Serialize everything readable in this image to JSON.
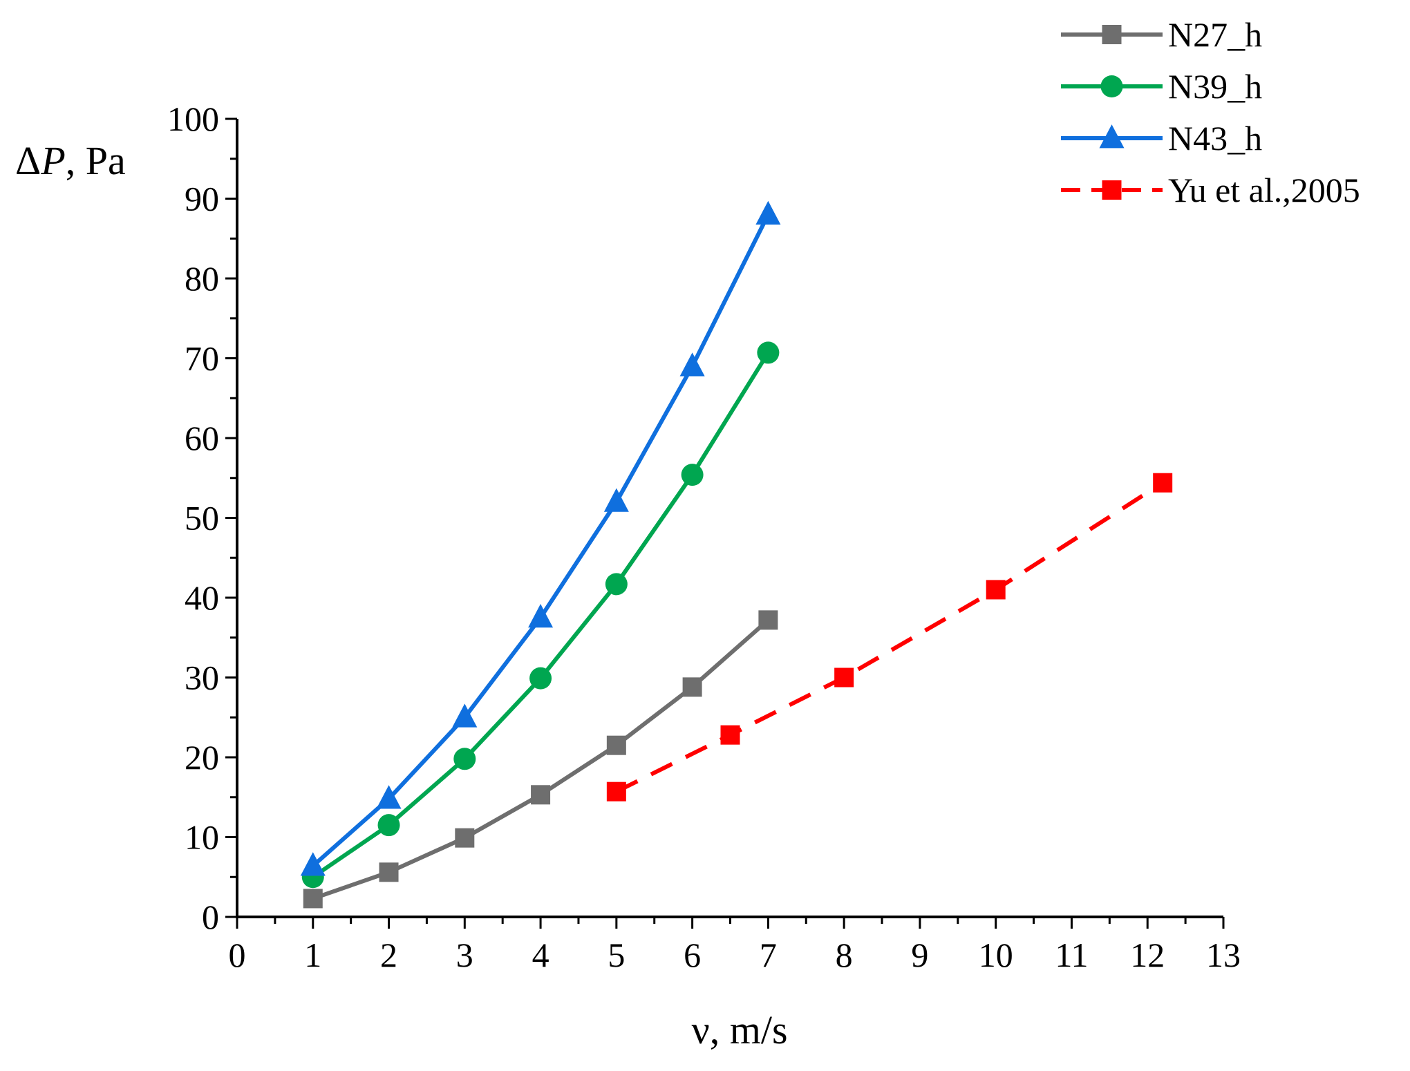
{
  "chart_data": {
    "type": "line",
    "title": "",
    "xlabel": "ν, m/s",
    "ylabel_symbol": "Δ",
    "ylabel_var": "P",
    "ylabel_unit": ", Pa",
    "xlim": [
      0,
      13
    ],
    "ylim": [
      0,
      100
    ],
    "x_ticks": [
      0,
      1,
      2,
      3,
      4,
      5,
      6,
      7,
      8,
      9,
      10,
      11,
      12,
      13
    ],
    "y_ticks": [
      0,
      10,
      20,
      30,
      40,
      50,
      60,
      70,
      80,
      90,
      100
    ],
    "grid": false,
    "legend_position": "top-right",
    "series": [
      {
        "name": "N27_h",
        "color": "#6e6e6e",
        "marker": "square",
        "dashed": false,
        "x": [
          1,
          2,
          3,
          4,
          5,
          6,
          7
        ],
        "y": [
          2.3,
          5.6,
          9.9,
          15.3,
          21.5,
          28.8,
          37.2
        ]
      },
      {
        "name": "N39_h",
        "color": "#00a650",
        "marker": "circle",
        "dashed": false,
        "x": [
          1,
          2,
          3,
          4,
          5,
          6,
          7
        ],
        "y": [
          5.0,
          11.5,
          19.8,
          29.9,
          41.7,
          55.4,
          70.7
        ]
      },
      {
        "name": "N43_h",
        "color": "#0f6fde",
        "marker": "triangle",
        "dashed": false,
        "x": [
          1,
          2,
          3,
          4,
          5,
          6,
          7
        ],
        "y": [
          6.4,
          14.8,
          25.0,
          37.5,
          52.0,
          69.0,
          88.0
        ]
      },
      {
        "name": "Yu et al.,2005",
        "color": "#ff0000",
        "marker": "square",
        "dashed": true,
        "x": [
          5,
          6.5,
          8,
          10,
          12.2
        ],
        "y": [
          15.7,
          22.8,
          30.0,
          41.0,
          54.4
        ]
      }
    ]
  }
}
